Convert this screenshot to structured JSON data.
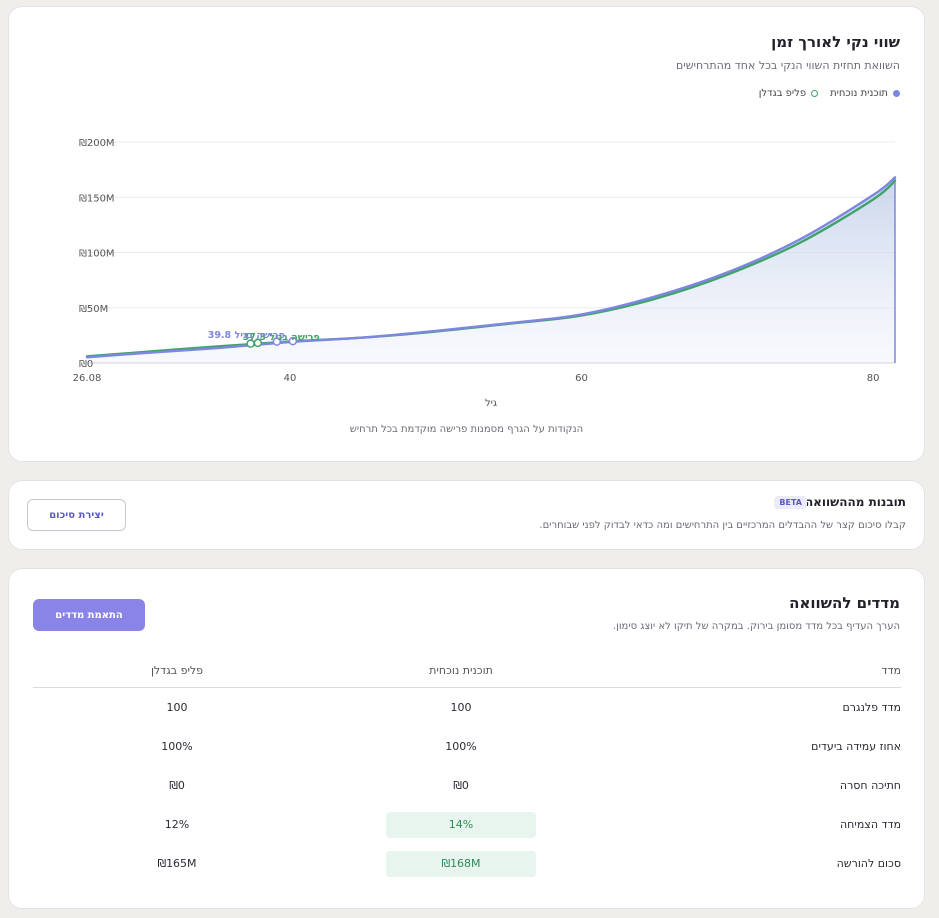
{
  "chart_card": {
    "title": "שווי נקי לאורך זמן",
    "subtitle": "השוואת תחזית השווי הנקי בכל אחד מהתרחישים",
    "footnote": "הנקודות על הגרף מסמנות פרישה מוקדמת בכל תרחיש"
  },
  "chart_data": {
    "type": "area",
    "xlabel": "גיל",
    "ylabel": "",
    "x_ticks": [
      "26.08",
      "40",
      "60",
      "80"
    ],
    "y_ticks": [
      "₪0",
      "₪50M",
      "₪100M",
      "₪150M",
      "₪200M"
    ],
    "xlim": [
      26.08,
      81.5
    ],
    "ylim": [
      0,
      200
    ],
    "grid": true,
    "legend_position": "top-right",
    "series": [
      {
        "name": "תוכנית נוכחית",
        "color": "#7f86e0",
        "x": [
          26.08,
          30,
          35,
          40,
          45,
          50,
          55,
          60,
          65,
          70,
          75,
          80,
          81.5
        ],
        "y": [
          5.2,
          9,
          13.5,
          19,
          23,
          29,
          36,
          44,
          60,
          82,
          112,
          152,
          168
        ],
        "annotation": "פרישה בגיל 39.8"
      },
      {
        "name": "פליפ בגדלן",
        "color": "#3fa36a",
        "x": [
          26.08,
          30,
          35,
          37.3,
          40,
          45,
          50,
          55,
          60,
          65,
          70,
          75,
          80,
          81.5
        ],
        "y": [
          6,
          10,
          15,
          17,
          19.5,
          23,
          28.5,
          35.5,
          43,
          58,
          80,
          109,
          148,
          165
        ],
        "annotation": "פרישה בגיל 37.3"
      }
    ],
    "markers": [
      {
        "series": 1,
        "x": 37.3,
        "y": 17.5
      },
      {
        "series": 1,
        "x": 37.8,
        "y": 18.2
      },
      {
        "series": 0,
        "x": 39.1,
        "y": 19.3
      },
      {
        "series": 0,
        "x": 40.2,
        "y": 19.8
      }
    ]
  },
  "insights": {
    "title": "תובנות מההשוואה",
    "badge": "BETA",
    "subtitle": "קבלו סיכום קצר של ההבדלים המרכזיים בין התרחישים ומה כדאי לבדוק לפני שבוחרים.",
    "button_label": "יצירת סיכום"
  },
  "metrics": {
    "title": "מדדים להשוואה",
    "subtitle": "הערך העדיף בכל מדד מסומן בירוק. במקרה של תיקו לא יוצג סימון.",
    "button_label": "התאמת מדדים",
    "columns": [
      "מדד",
      "תוכנית נוכחית",
      "פליפ בגדלן"
    ],
    "rows": [
      {
        "name": "מדד פלנגרם",
        "current": "100",
        "alt": "100"
      },
      {
        "name": "אחוז עמידה ביעדים",
        "current": "100%",
        "alt": "100%"
      },
      {
        "name": "חתיכה חסרה",
        "current": "₪0",
        "alt": "₪0"
      },
      {
        "name": "מדד הצמיחה",
        "current": "14%",
        "alt": "12%"
      },
      {
        "name": "סכום להורשה",
        "current": "₪168M",
        "alt": "₪165M"
      }
    ]
  }
}
